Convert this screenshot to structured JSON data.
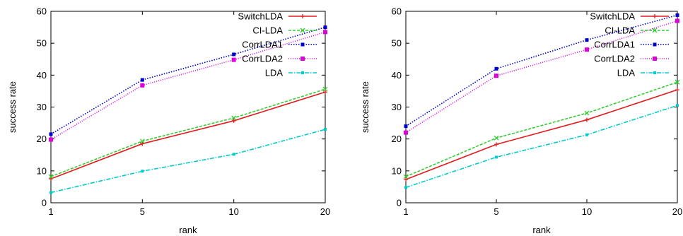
{
  "chart_data": [
    {
      "type": "line",
      "title": "",
      "xlabel": "rank",
      "ylabel": "success rate",
      "categories": [
        "1",
        "5",
        "10",
        "20"
      ],
      "ylim": [
        0,
        60
      ],
      "yticks": [
        "0",
        "10",
        "20",
        "30",
        "40",
        "50",
        "60"
      ],
      "grid": false,
      "legend_position": "top-right",
      "series": [
        {
          "name": "SwitchLDA",
          "color": "#e41a1c",
          "dash": "",
          "marker": "plus",
          "values": [
            7.5,
            18.5,
            25.7,
            34.7
          ]
        },
        {
          "name": "CI-LDA",
          "color": "#33cc33",
          "dash": "4,2",
          "marker": "x",
          "values": [
            8.2,
            19.3,
            26.6,
            35.6
          ]
        },
        {
          "name": "CorrLDA1",
          "color": "#0000cc",
          "dash": "1.5,2",
          "marker": "square-filled",
          "values": [
            21.5,
            38.5,
            46.5,
            55
          ]
        },
        {
          "name": "CorrLDA2",
          "color": "#dd00dd",
          "dash": "1,2",
          "marker": "square",
          "values": [
            19.8,
            36.8,
            44.8,
            53.5
          ]
        },
        {
          "name": "LDA",
          "color": "#00cccc",
          "dash": "6,2,1.5,2",
          "marker": "square-small",
          "values": [
            3.2,
            9.9,
            15.2,
            23
          ]
        }
      ]
    },
    {
      "type": "line",
      "title": "",
      "xlabel": "rank",
      "ylabel": "success rate",
      "categories": [
        "1",
        "5",
        "10",
        "20"
      ],
      "ylim": [
        0,
        60
      ],
      "yticks": [
        "0",
        "10",
        "20",
        "30",
        "40",
        "50",
        "60"
      ],
      "grid": false,
      "legend_position": "top-right",
      "series": [
        {
          "name": "SwitchLDA",
          "color": "#e41a1c",
          "dash": "",
          "marker": "plus",
          "values": [
            7.3,
            18.3,
            26,
            35.4
          ]
        },
        {
          "name": "CI-LDA",
          "color": "#33cc33",
          "dash": "4,2",
          "marker": "x",
          "values": [
            8.2,
            20.3,
            28.1,
            37.8
          ]
        },
        {
          "name": "CorrLDA1",
          "color": "#0000cc",
          "dash": "1.5,2",
          "marker": "square-filled",
          "values": [
            24,
            42,
            51,
            58.8
          ]
        },
        {
          "name": "CorrLDA2",
          "color": "#dd00dd",
          "dash": "1,2",
          "marker": "square",
          "values": [
            22,
            39.8,
            48,
            57
          ]
        },
        {
          "name": "LDA",
          "color": "#00cccc",
          "dash": "6,2,1.5,2",
          "marker": "square-small",
          "values": [
            4.8,
            14.3,
            21.3,
            30.5
          ]
        }
      ]
    }
  ]
}
